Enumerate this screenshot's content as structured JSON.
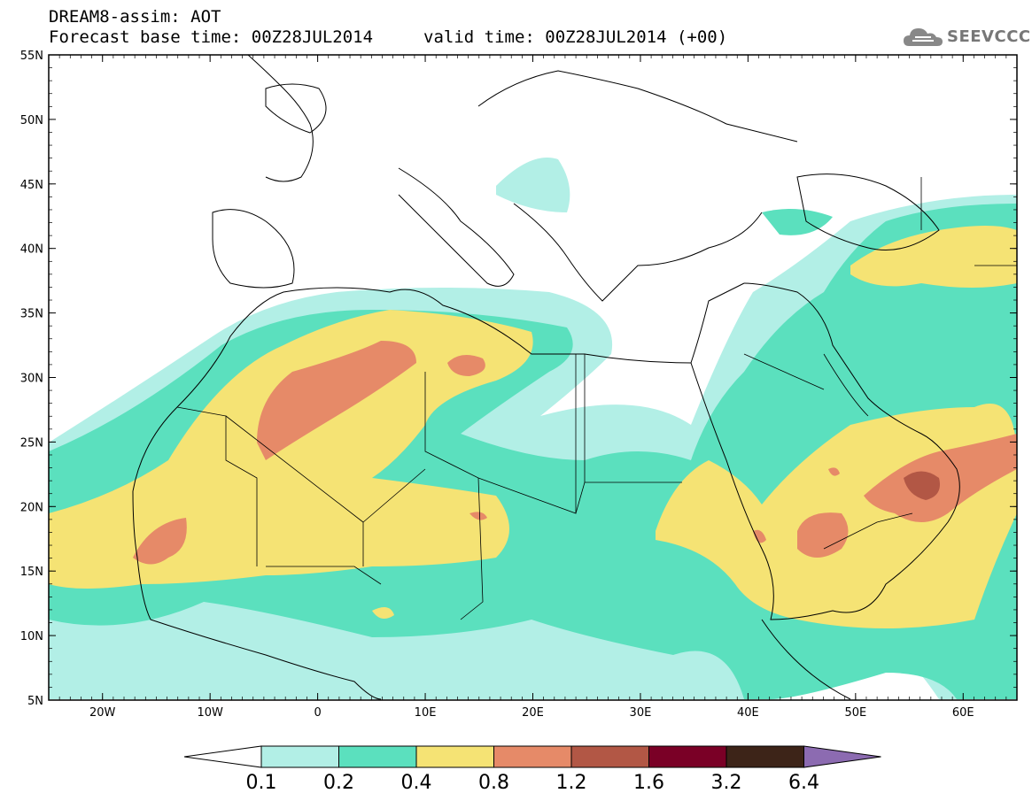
{
  "header": {
    "title": "DREAM8-assim: AOT",
    "base_time": "Forecast base time: 00Z28JUL2014",
    "valid_time": "valid time: 00Z28JUL2014 (+00)",
    "logo_text": "SEEVCCC"
  },
  "map": {
    "lat_labels": [
      "55N",
      "50N",
      "45N",
      "40N",
      "35N",
      "30N",
      "25N",
      "20N",
      "15N",
      "10N",
      "5N"
    ],
    "lon_labels": [
      "20W",
      "10W",
      "0",
      "10E",
      "20E",
      "30E",
      "40E",
      "50E",
      "60E"
    ],
    "lat_range": [
      5,
      55
    ],
    "lon_range": [
      -25,
      65
    ]
  },
  "legend": {
    "labels": [
      "0.1",
      "0.2",
      "0.4",
      "0.8",
      "1.2",
      "1.6",
      "3.2",
      "6.4"
    ],
    "colors": [
      "#ffffff",
      "#b2efe6",
      "#5be0be",
      "#f5e374",
      "#e68a68",
      "#b25745",
      "#7a0026",
      "#3d2418",
      "#8c6bb1"
    ]
  },
  "colors": {
    "c01": "#b2efe6",
    "c02": "#5be0be",
    "c04": "#f5e374",
    "c08": "#e68a68",
    "c12": "#b25745",
    "c16": "#7a0026"
  }
}
